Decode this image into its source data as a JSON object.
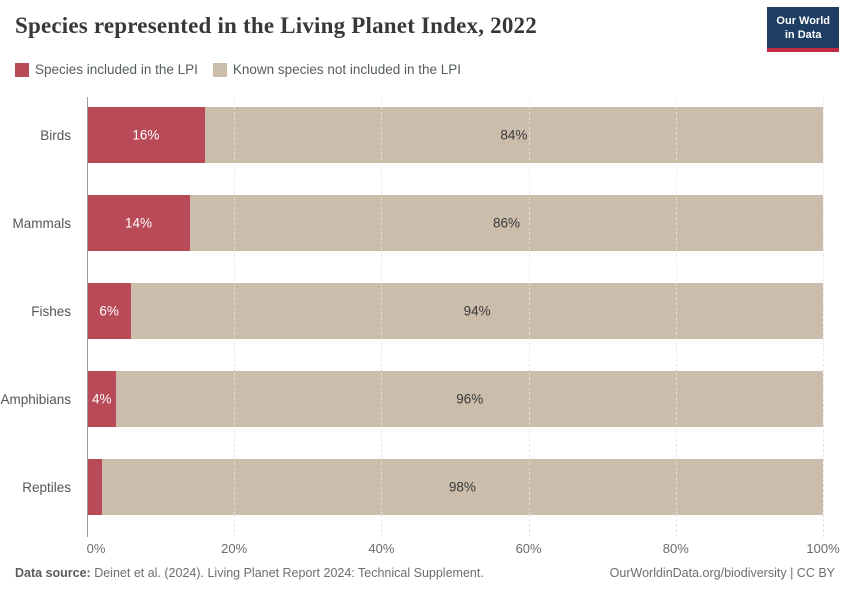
{
  "title": "Species represented in the Living Planet Index, 2022",
  "logo": {
    "line1": "Our World",
    "line2": "in Data",
    "bg_color": "#1d3d63",
    "accent_color": "#c12940"
  },
  "legend": [
    {
      "label": "Species included in the LPI",
      "color": "#b94a57"
    },
    {
      "label": "Known species not included in the LPI",
      "color": "#cbbcab"
    }
  ],
  "chart_data": {
    "type": "bar",
    "orientation": "horizontal",
    "stacked": true,
    "title": "Species represented in the Living Planet Index, 2022",
    "categories": [
      "Birds",
      "Mammals",
      "Fishes",
      "Amphibians",
      "Reptiles"
    ],
    "series": [
      {
        "name": "Species included in the LPI",
        "color": "#b94a57",
        "values": [
          16,
          14,
          6,
          4,
          2
        ],
        "labels": [
          "16%",
          "14%",
          "6%",
          "4%",
          ""
        ]
      },
      {
        "name": "Known species not included in the LPI",
        "color": "#cbbcab",
        "values": [
          84,
          86,
          94,
          96,
          98
        ],
        "labels": [
          "84%",
          "86%",
          "94%",
          "96%",
          "98%"
        ]
      }
    ],
    "xlim": [
      0,
      100
    ],
    "x_ticks": [
      0,
      20,
      40,
      60,
      80,
      100
    ],
    "x_tick_labels": [
      "0%",
      "20%",
      "40%",
      "60%",
      "80%",
      "100%"
    ],
    "grid": true,
    "legend_position": "top"
  },
  "footer": {
    "source_label": "Data source:",
    "source_text": " Deinet et al. (2024). Living Planet Report 2024: Technical Supplement.",
    "link": "OurWorldinData.org/biodiversity | CC BY"
  }
}
